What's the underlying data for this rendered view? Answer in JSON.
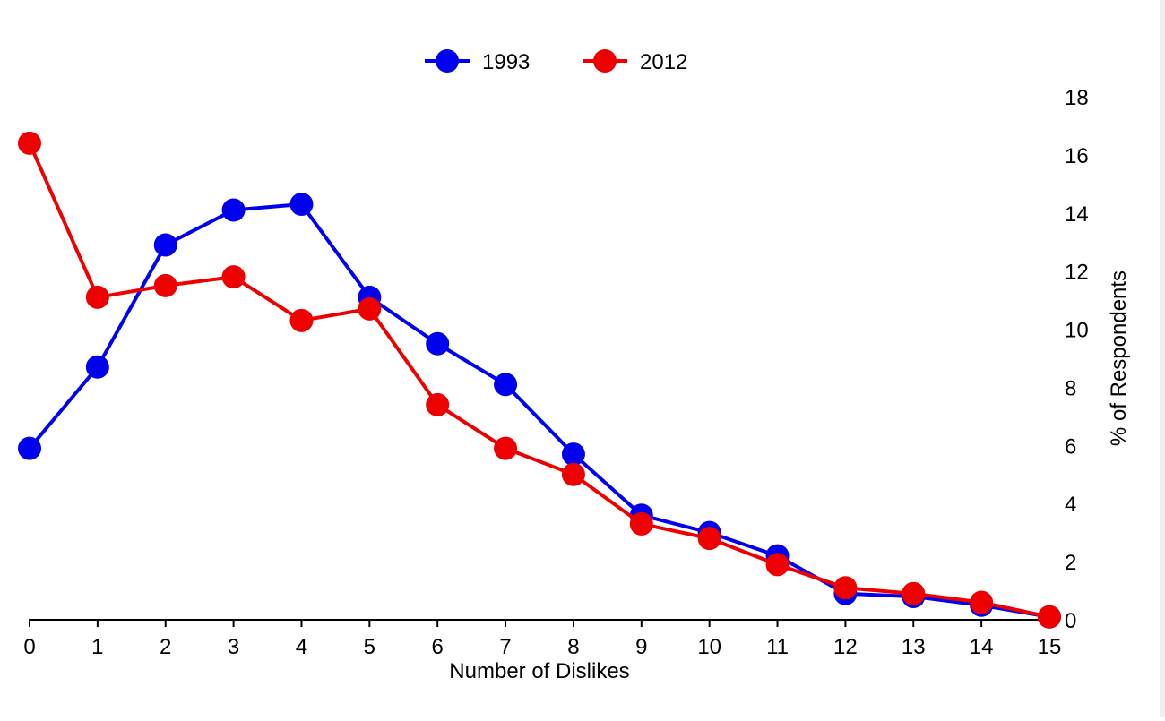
{
  "chart_data": {
    "type": "line",
    "xlabel": "Number of Dislikes",
    "ylabel": "% of Respondents",
    "x": [
      0,
      1,
      2,
      3,
      4,
      5,
      6,
      7,
      8,
      9,
      10,
      11,
      12,
      13,
      14,
      15
    ],
    "xlim": [
      0,
      15
    ],
    "ylim": [
      0,
      18
    ],
    "x_ticks": [
      0,
      1,
      2,
      3,
      4,
      5,
      6,
      7,
      8,
      9,
      10,
      11,
      12,
      13,
      14,
      15
    ],
    "y_ticks": [
      0,
      2,
      4,
      6,
      8,
      10,
      12,
      14,
      16,
      18
    ],
    "y_axis_side": "right",
    "grid": false,
    "legend_position": "top-center",
    "series": [
      {
        "name": "1993",
        "color": "#0000ee",
        "values": [
          5.9,
          8.7,
          12.9,
          14.1,
          14.3,
          11.1,
          9.5,
          8.1,
          5.7,
          3.6,
          3.0,
          2.2,
          0.9,
          0.8,
          0.5,
          0.1
        ]
      },
      {
        "name": "2012",
        "color": "#ee0000",
        "values": [
          16.4,
          11.1,
          11.5,
          11.8,
          10.3,
          10.7,
          7.4,
          5.9,
          5.0,
          3.3,
          2.8,
          1.9,
          1.1,
          0.9,
          0.6,
          0.1
        ]
      }
    ]
  }
}
